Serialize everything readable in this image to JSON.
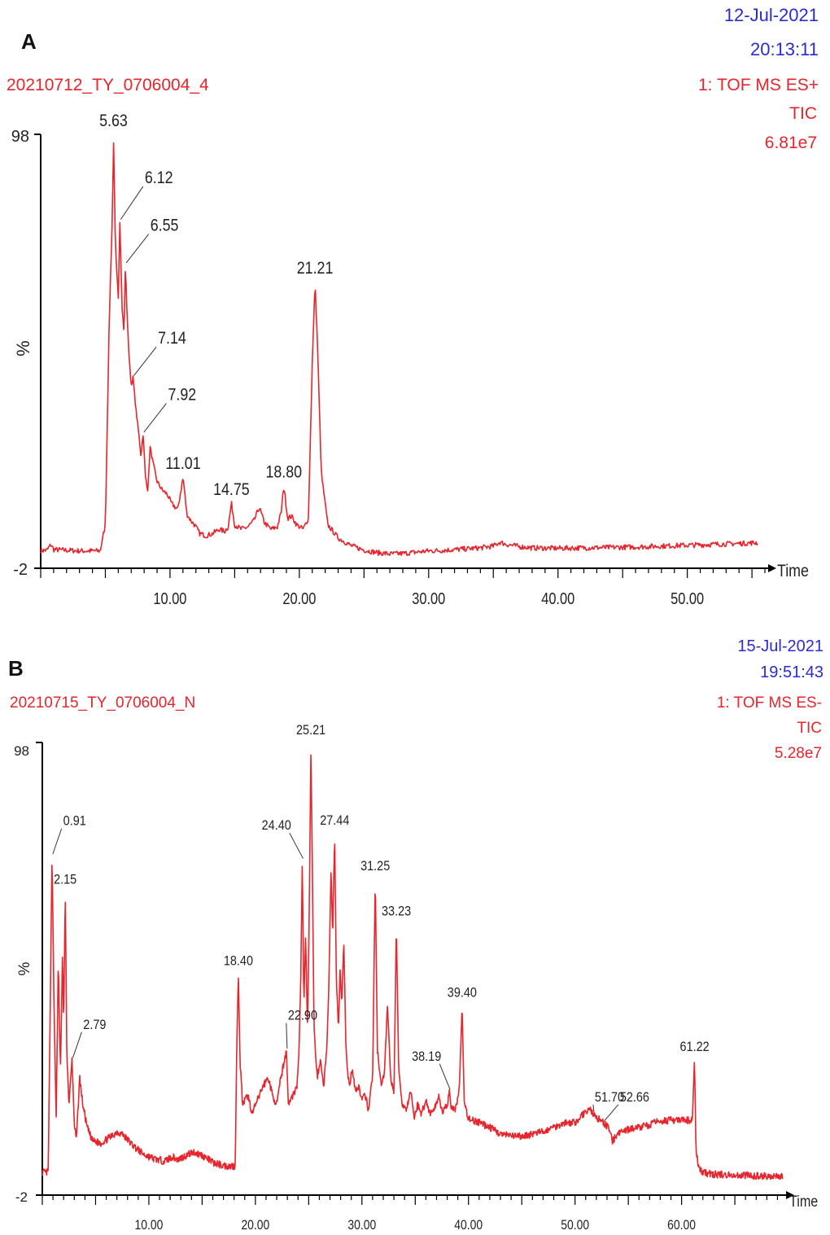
{
  "colors": {
    "trace": "#e8242c",
    "header_blue": "#2b2bd6",
    "header_red": "#e8242c",
    "axis": "#000000",
    "label": "#222222"
  },
  "chart_data": [
    {
      "type": "line",
      "panel_label": "A",
      "sample_name": "20210712_TY_0706004_4",
      "date": "12-Jul-2021",
      "time": "20:13:11",
      "detector": "1: TOF MS ES+",
      "trace": "TIC",
      "intensity": "6.81e7",
      "ylabel": "%",
      "xlabel": "Time",
      "y_ticks": [
        "98",
        "-2"
      ],
      "ylim": [
        -2,
        98
      ],
      "xlim": [
        0,
        56
      ],
      "x_ticks": [
        10,
        20,
        30,
        40,
        50
      ],
      "x_tick_labels": [
        "10.00",
        "20.00",
        "30.00",
        "40.00",
        "50.00"
      ],
      "baseline": 2,
      "tail": [
        [
          0,
          2.0
        ],
        [
          0.5,
          2.2
        ],
        [
          0.8,
          3.5
        ],
        [
          1.0,
          2.3
        ],
        [
          3,
          2.0
        ],
        [
          4.6,
          2.0
        ],
        [
          5.0,
          8
        ],
        [
          5.3,
          55
        ],
        [
          5.55,
          80
        ],
        [
          5.63,
          98
        ],
        [
          5.78,
          72
        ],
        [
          6.0,
          60
        ],
        [
          6.12,
          78
        ],
        [
          6.3,
          58
        ],
        [
          6.45,
          52
        ],
        [
          6.55,
          68
        ],
        [
          6.7,
          55
        ],
        [
          6.85,
          46
        ],
        [
          7.0,
          40
        ],
        [
          7.14,
          42
        ],
        [
          7.35,
          35
        ],
        [
          7.55,
          30
        ],
        [
          7.75,
          24
        ],
        [
          7.92,
          29
        ],
        [
          8.1,
          19
        ],
        [
          8.3,
          16
        ],
        [
          8.45,
          26
        ],
        [
          8.7,
          22
        ],
        [
          9.0,
          18
        ],
        [
          9.4,
          16
        ],
        [
          9.8,
          15
        ],
        [
          10.1,
          13
        ],
        [
          10.6,
          11.5
        ],
        [
          11.01,
          19
        ],
        [
          11.3,
          10.5
        ],
        [
          11.6,
          9
        ],
        [
          11.9,
          8
        ],
        [
          12.3,
          6
        ],
        [
          12.8,
          5.5
        ],
        [
          13.3,
          6
        ],
        [
          13.8,
          7
        ],
        [
          14.2,
          6.5
        ],
        [
          14.5,
          7.5
        ],
        [
          14.75,
          13
        ],
        [
          15.0,
          8
        ],
        [
          15.5,
          7
        ],
        [
          16.0,
          7.5
        ],
        [
          16.5,
          9
        ],
        [
          16.9,
          12
        ],
        [
          17.3,
          8.5
        ],
        [
          17.8,
          7
        ],
        [
          18.3,
          7.5
        ],
        [
          18.6,
          11
        ],
        [
          18.8,
          17
        ],
        [
          19.1,
          9.5
        ],
        [
          19.4,
          10
        ],
        [
          19.8,
          8
        ],
        [
          20.3,
          7
        ],
        [
          20.7,
          9.5
        ],
        [
          21.0,
          45
        ],
        [
          21.21,
          64
        ],
        [
          21.4,
          50
        ],
        [
          21.7,
          20
        ],
        [
          22.2,
          8
        ],
        [
          23.0,
          5
        ],
        [
          24.0,
          3.2
        ],
        [
          25.0,
          2.2
        ],
        [
          26.0,
          1.6
        ],
        [
          27.0,
          1.3
        ],
        [
          28.0,
          1.4
        ],
        [
          29.0,
          1.7
        ],
        [
          30.0,
          2.0
        ],
        [
          31.0,
          2.1
        ],
        [
          32.0,
          2.3
        ],
        [
          33.0,
          2.5
        ],
        [
          34.0,
          2.7
        ],
        [
          35.0,
          3.1
        ],
        [
          35.5,
          4.0
        ],
        [
          36.0,
          3.5
        ],
        [
          37.0,
          3.0
        ],
        [
          38.0,
          2.7
        ],
        [
          40.0,
          2.6
        ],
        [
          42.0,
          2.7
        ],
        [
          44.0,
          2.8
        ],
        [
          46.0,
          2.9
        ],
        [
          48.0,
          3.1
        ],
        [
          50.0,
          3.3
        ],
        [
          52.0,
          3.5
        ],
        [
          54.0,
          3.7
        ],
        [
          55.5,
          3.9
        ]
      ],
      "peak_labels": [
        {
          "label": "5.63",
          "x": 5.63,
          "y": 98,
          "dx": 0,
          "dy": 0
        },
        {
          "label": "6.12",
          "x": 6.12,
          "y": 78,
          "dx": 1.8,
          "dy": 8
        },
        {
          "label": "6.55",
          "x": 6.55,
          "y": 68,
          "dx": 1.8,
          "dy": 7
        },
        {
          "label": "7.14",
          "x": 7.14,
          "y": 42,
          "dx": 1.8,
          "dy": 7
        },
        {
          "label": "7.92",
          "x": 7.92,
          "y": 29,
          "dx": 1.8,
          "dy": 7
        },
        {
          "label": "11.01",
          "x": 11.01,
          "y": 19,
          "dx": 0,
          "dy": 0
        },
        {
          "label": "14.75",
          "x": 14.75,
          "y": 13,
          "dx": 0,
          "dy": 0
        },
        {
          "label": "18.80",
          "x": 18.8,
          "y": 17,
          "dx": 0,
          "dy": 0
        },
        {
          "label": "21.21",
          "x": 21.21,
          "y": 64,
          "dx": 0,
          "dy": 0
        }
      ]
    },
    {
      "type": "line",
      "panel_label": "B",
      "sample_name": "20210715_TY_0706004_N",
      "date": "15-Jul-2021",
      "time": "19:51:43",
      "detector": "1: TOF MS ES-",
      "trace": "TIC",
      "intensity": "5.28e7",
      "ylabel": "%",
      "xlabel": "Time",
      "y_ticks": [
        "98",
        "-2"
      ],
      "ylim": [
        -2,
        98
      ],
      "xlim": [
        0,
        69.5
      ],
      "x_ticks": [
        10,
        20,
        30,
        40,
        50,
        60
      ],
      "x_tick_labels": [
        "10.00",
        "20.00",
        "30.00",
        "40.00",
        "50.00",
        "60.00"
      ],
      "baseline": 10,
      "tail": [
        [
          0,
          3
        ],
        [
          0.55,
          3
        ],
        [
          0.7,
          30
        ],
        [
          0.91,
          73
        ],
        [
          1.1,
          40
        ],
        [
          1.3,
          15
        ],
        [
          1.5,
          50
        ],
        [
          1.7,
          25
        ],
        [
          1.9,
          52
        ],
        [
          2.0,
          35
        ],
        [
          2.15,
          65
        ],
        [
          2.3,
          30
        ],
        [
          2.5,
          18
        ],
        [
          2.79,
          28
        ],
        [
          3.0,
          14
        ],
        [
          3.2,
          10
        ],
        [
          3.5,
          24
        ],
        [
          3.8,
          18
        ],
        [
          4.2,
          13
        ],
        [
          4.7,
          10
        ],
        [
          5.5,
          9.5
        ],
        [
          6.5,
          11
        ],
        [
          7.0,
          12
        ],
        [
          7.5,
          11.5
        ],
        [
          8.5,
          9
        ],
        [
          9.5,
          7
        ],
        [
          10.5,
          6
        ],
        [
          11.5,
          5.5
        ],
        [
          12.2,
          6.5
        ],
        [
          12.7,
          5.8
        ],
        [
          13.5,
          6.8
        ],
        [
          14.2,
          7.5
        ],
        [
          15.0,
          6.8
        ],
        [
          16.0,
          5.2
        ],
        [
          17.0,
          4.5
        ],
        [
          18.1,
          4.4
        ],
        [
          18.25,
          30
        ],
        [
          18.4,
          47
        ],
        [
          18.55,
          28
        ],
        [
          18.8,
          18
        ],
        [
          19.3,
          20
        ],
        [
          19.7,
          16
        ],
        [
          20.2,
          19
        ],
        [
          20.7,
          22
        ],
        [
          21.2,
          24
        ],
        [
          21.6,
          20
        ],
        [
          22.0,
          18
        ],
        [
          22.4,
          24
        ],
        [
          22.9,
          30
        ],
        [
          23.1,
          18
        ],
        [
          23.5,
          20
        ],
        [
          23.9,
          22
        ],
        [
          24.1,
          30
        ],
        [
          24.25,
          45
        ],
        [
          24.4,
          72
        ],
        [
          24.55,
          40
        ],
        [
          24.7,
          55
        ],
        [
          24.9,
          35
        ],
        [
          25.05,
          60
        ],
        [
          25.21,
          98
        ],
        [
          25.35,
          70
        ],
        [
          25.5,
          35
        ],
        [
          25.8,
          24
        ],
        [
          26.1,
          28
        ],
        [
          26.4,
          22
        ],
        [
          26.7,
          30
        ],
        [
          26.9,
          45
        ],
        [
          27.1,
          70
        ],
        [
          27.25,
          55
        ],
        [
          27.44,
          78
        ],
        [
          27.6,
          45
        ],
        [
          27.8,
          35
        ],
        [
          27.95,
          48
        ],
        [
          28.1,
          40
        ],
        [
          28.3,
          54
        ],
        [
          28.5,
          30
        ],
        [
          28.8,
          22
        ],
        [
          29.1,
          26
        ],
        [
          29.4,
          21
        ],
        [
          29.7,
          22
        ],
        [
          30.0,
          19
        ],
        [
          30.3,
          20
        ],
        [
          30.6,
          17
        ],
        [
          31.0,
          24
        ],
        [
          31.25,
          68
        ],
        [
          31.45,
          30
        ],
        [
          31.8,
          22
        ],
        [
          32.1,
          25
        ],
        [
          32.4,
          40
        ],
        [
          32.7,
          24
        ],
        [
          33.0,
          20
        ],
        [
          33.23,
          58
        ],
        [
          33.45,
          25
        ],
        [
          33.8,
          18
        ],
        [
          34.2,
          17
        ],
        [
          34.6,
          21
        ],
        [
          34.9,
          15
        ],
        [
          35.2,
          18
        ],
        [
          35.6,
          16
        ],
        [
          36.0,
          19
        ],
        [
          36.4,
          16
        ],
        [
          36.8,
          17
        ],
        [
          37.2,
          20
        ],
        [
          37.6,
          16
        ],
        [
          38.0,
          18
        ],
        [
          38.19,
          21
        ],
        [
          38.4,
          17
        ],
        [
          38.8,
          17
        ],
        [
          39.15,
          22
        ],
        [
          39.4,
          40
        ],
        [
          39.6,
          18
        ],
        [
          40.0,
          15
        ],
        [
          41.0,
          14
        ],
        [
          42.0,
          13
        ],
        [
          43.0,
          11.5
        ],
        [
          44.0,
          11
        ],
        [
          45.0,
          11
        ],
        [
          46.0,
          11.5
        ],
        [
          47.0,
          12
        ],
        [
          48.0,
          13
        ],
        [
          49.0,
          14
        ],
        [
          50.0,
          14
        ],
        [
          50.8,
          16
        ],
        [
          51.3,
          17
        ],
        [
          51.7,
          16
        ],
        [
          52.1,
          15
        ],
        [
          52.66,
          14
        ],
        [
          53.1,
          13
        ],
        [
          53.5,
          10
        ],
        [
          53.9,
          11
        ],
        [
          54.3,
          12
        ],
        [
          55.0,
          12.5
        ],
        [
          56.0,
          13
        ],
        [
          57.0,
          13.5
        ],
        [
          58.0,
          14.5
        ],
        [
          59.0,
          14.5
        ],
        [
          60.0,
          14.5
        ],
        [
          61.0,
          14.5
        ],
        [
          61.1,
          20
        ],
        [
          61.22,
          28
        ],
        [
          61.35,
          8
        ],
        [
          61.6,
          4
        ],
        [
          62.0,
          3
        ],
        [
          63.0,
          2.6
        ],
        [
          65.0,
          2.4
        ],
        [
          67.0,
          2.3
        ],
        [
          69.5,
          2.2
        ]
      ],
      "peak_labels": [
        {
          "label": "0.91",
          "x": 0.91,
          "y": 73,
          "dx": 0.9,
          "dy": 6
        },
        {
          "label": "2.15",
          "x": 2.15,
          "y": 65,
          "dx": 0,
          "dy": 0
        },
        {
          "label": "2.79",
          "x": 2.79,
          "y": 28,
          "dx": 0.9,
          "dy": 6
        },
        {
          "label": "18.40",
          "x": 18.4,
          "y": 47,
          "dx": 0,
          "dy": 0
        },
        {
          "label": "22.90",
          "x": 22.9,
          "y": 30,
          "dx": 0,
          "dy": 6
        },
        {
          "label": "24.40",
          "x": 24.4,
          "y": 72,
          "dx": -1.2,
          "dy": 6
        },
        {
          "label": "25.21",
          "x": 25.21,
          "y": 98,
          "dx": 0,
          "dy": 0
        },
        {
          "label": "27.44",
          "x": 27.44,
          "y": 78,
          "dx": 0,
          "dy": 0
        },
        {
          "label": "31.25",
          "x": 31.25,
          "y": 68,
          "dx": 0,
          "dy": 0
        },
        {
          "label": "33.23",
          "x": 33.23,
          "y": 58,
          "dx": 0,
          "dy": 0
        },
        {
          "label": "38.19",
          "x": 38.19,
          "y": 21,
          "dx": -0.9,
          "dy": 6
        },
        {
          "label": "39.40",
          "x": 39.4,
          "y": 40,
          "dx": 0,
          "dy": 0
        },
        {
          "label": "51.70",
          "x": 51.7,
          "y": 16,
          "dx": 0,
          "dy": 2
        },
        {
          "label": "52.66",
          "x": 52.66,
          "y": 14,
          "dx": 1.4,
          "dy": 4
        },
        {
          "label": "61.22",
          "x": 61.22,
          "y": 28,
          "dx": 0,
          "dy": 0
        }
      ]
    }
  ]
}
